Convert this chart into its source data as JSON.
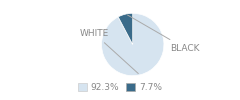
{
  "slices": [
    92.3,
    7.7
  ],
  "labels": [
    "WHITE",
    "BLACK"
  ],
  "colors": [
    "#d6e4f0",
    "#3a6b8a"
  ],
  "legend_labels": [
    "92.3%",
    "7.7%"
  ],
  "startangle": 90,
  "wedge_edge_color": "#ffffff",
  "background_color": "#ffffff",
  "label_fontsize": 6.5,
  "label_color": "#888888",
  "legend_fontsize": 6.5
}
